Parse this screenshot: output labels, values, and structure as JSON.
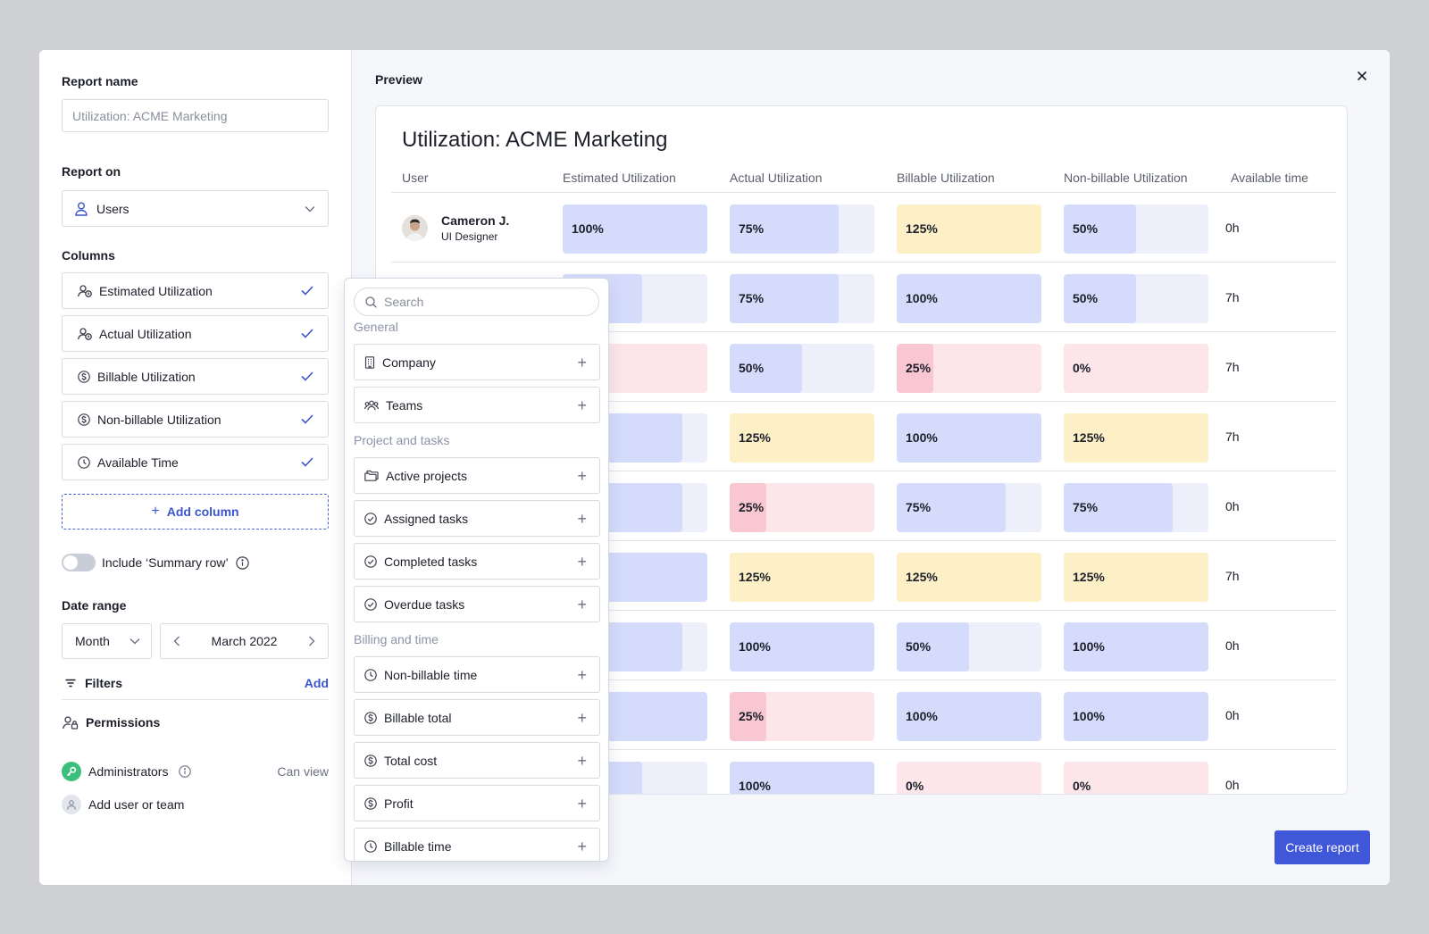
{
  "left": {
    "report_name_label": "Report name",
    "report_name_placeholder": "Utilization: ACME Marketing",
    "report_on_label": "Report on",
    "report_on_value": "Users",
    "columns_label": "Columns",
    "columns": [
      {
        "label": "Estimated Utilization",
        "icon": "user-clock-icon"
      },
      {
        "label": "Actual Utilization",
        "icon": "user-clock-icon"
      },
      {
        "label": "Billable Utilization",
        "icon": "dollar-icon"
      },
      {
        "label": "Non-billable Utilization",
        "icon": "dollar-icon"
      },
      {
        "label": "Available Time",
        "icon": "clock-icon"
      }
    ],
    "add_column_label": "Add column",
    "summary_row_label": "Include ‘Summary row’",
    "date_range_label": "Date range",
    "period_value": "Month",
    "date_value": "March 2022",
    "filters_label": "Filters",
    "filters_add": "Add",
    "permissions_label": "Permissions",
    "permissions": [
      {
        "name": "Administrators",
        "role": "Can view"
      },
      {
        "name": "Add user or team",
        "role": ""
      }
    ]
  },
  "preview": {
    "title": "Preview",
    "report_title": "Utilization: ACME Marketing",
    "headers": [
      "User",
      "Estimated Utilization",
      "Actual Utilization",
      "Billable Utilization",
      "Non-billable Utilization",
      "Available time"
    ],
    "create_button": "Create report",
    "rows": [
      {
        "user": "Cameron J.",
        "role": "UI Designer",
        "est": "100%",
        "act": "75%",
        "bill": "125%",
        "nonbill": "50%",
        "avail": "0h"
      },
      {
        "user": "",
        "role": "",
        "est": "",
        "act": "75%",
        "bill": "100%",
        "nonbill": "50%",
        "avail": "7h"
      },
      {
        "user": "",
        "role": "",
        "est": "",
        "act": "50%",
        "bill": "25%",
        "nonbill": "0%",
        "avail": "7h"
      },
      {
        "user": "",
        "role": "",
        "est": "",
        "act": "125%",
        "bill": "100%",
        "nonbill": "125%",
        "avail": "7h"
      },
      {
        "user": "",
        "role": "",
        "est": "",
        "act": "25%",
        "bill": "75%",
        "nonbill": "75%",
        "avail": "0h"
      },
      {
        "user": "",
        "role": "",
        "est": "",
        "act": "125%",
        "bill": "125%",
        "nonbill": "125%",
        "avail": "7h"
      },
      {
        "user": "",
        "role": "",
        "est": "",
        "act": "100%",
        "bill": "50%",
        "nonbill": "100%",
        "avail": "0h"
      },
      {
        "user": "",
        "role": "",
        "est": "",
        "act": "25%",
        "bill": "100%",
        "nonbill": "100%",
        "avail": "0h"
      },
      {
        "user": "",
        "role": "",
        "est": "",
        "act": "100%",
        "bill": "0%",
        "nonbill": "0%",
        "avail": "0h"
      }
    ],
    "estimated_levels": [
      1.0,
      0.55,
      0.0,
      0.83,
      0.83,
      1.0,
      0.83,
      1.0,
      0.55
    ],
    "colors": {
      "blue_fill": "#d5dcfb",
      "blue_track": "#edf0fb",
      "red_fill": "#f8c7d1",
      "red_track": "#fde6ea",
      "yellow": "#fdefc6",
      "accent": "#3f57d8"
    }
  },
  "dropdown": {
    "search_placeholder": "Search",
    "groups": [
      {
        "label": "General",
        "items": [
          {
            "label": "Company",
            "icon": "building-icon"
          },
          {
            "label": "Teams",
            "icon": "team-icon"
          }
        ]
      },
      {
        "label": "Project and tasks",
        "items": [
          {
            "label": "Active projects",
            "icon": "folders-icon"
          },
          {
            "label": "Assigned tasks",
            "icon": "check-circle-icon"
          },
          {
            "label": "Completed tasks",
            "icon": "check-circle-icon"
          },
          {
            "label": "Overdue tasks",
            "icon": "check-circle-icon"
          }
        ]
      },
      {
        "label": "Billing and time",
        "items": [
          {
            "label": "Non-billable time",
            "icon": "clock-icon"
          },
          {
            "label": "Billable total",
            "icon": "dollar-icon"
          },
          {
            "label": "Total cost",
            "icon": "dollar-icon"
          },
          {
            "label": "Profit",
            "icon": "dollar-icon"
          },
          {
            "label": "Billable time",
            "icon": "clock-icon"
          }
        ]
      }
    ]
  }
}
